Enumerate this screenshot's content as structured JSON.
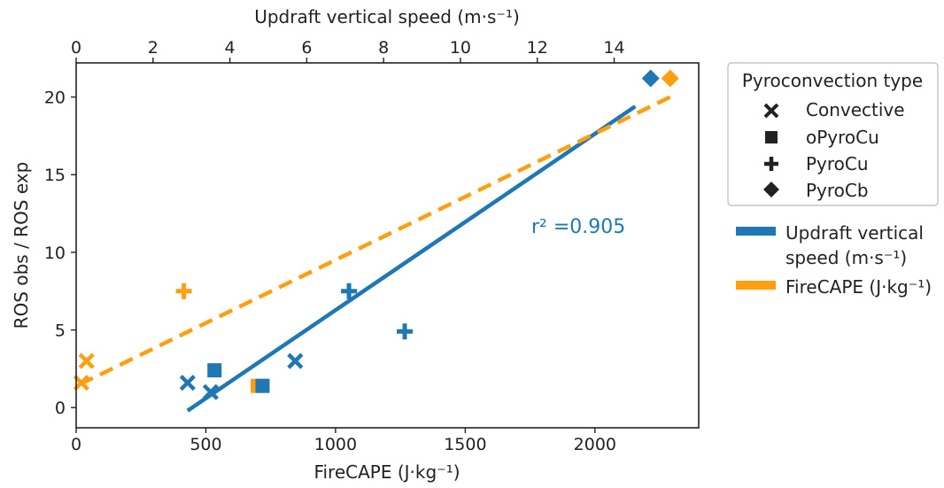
{
  "chart_data": {
    "type": "scatter",
    "xlabel": "FireCAPE (J·kg⁻¹)",
    "xlabel_top": "Updraft vertical speed (m·s⁻¹)",
    "ylabel": "ROS obs / ROS exp",
    "xlim": [
      0,
      2400
    ],
    "xlim_top": [
      0,
      16.2
    ],
    "ylim": [
      -1.3,
      22.2
    ],
    "x_ticks": [
      0,
      500,
      1000,
      1500,
      2000
    ],
    "x_top_ticks": [
      0,
      2,
      4,
      6,
      8,
      10,
      12,
      14
    ],
    "y_ticks": [
      0,
      5,
      10,
      15,
      20
    ],
    "annotation": "r² =0.905",
    "legend_title": "Pyroconvection type",
    "marker_legend": [
      {
        "label": "Convective",
        "marker": "x"
      },
      {
        "label": "oPyroCu",
        "marker": "square"
      },
      {
        "label": "PyroCu",
        "marker": "plus"
      },
      {
        "label": "PyroCb",
        "marker": "diamond"
      }
    ],
    "colors": {
      "updraft": "#1f77b4",
      "firecape": "#ff9f0f"
    },
    "series": [
      {
        "name": "Updraft vertical speed (m·s⁻¹)",
        "axis": "top",
        "color": "#1f77b4",
        "fit_line": {
          "style": "solid",
          "from": [
            2.9,
            -0.2
          ],
          "to": [
            14.55,
            19.4
          ]
        },
        "points": [
          {
            "x": 2.9,
            "y": 1.6,
            "marker": "x"
          },
          {
            "x": 3.5,
            "y": 1.0,
            "marker": "x"
          },
          {
            "x": 5.7,
            "y": 3.0,
            "marker": "x"
          },
          {
            "x": 3.6,
            "y": 2.4,
            "marker": "square"
          },
          {
            "x": 4.85,
            "y": 1.4,
            "marker": "square"
          },
          {
            "x": 7.1,
            "y": 7.5,
            "marker": "plus"
          },
          {
            "x": 8.55,
            "y": 4.9,
            "marker": "plus"
          },
          {
            "x": 14.95,
            "y": 21.2,
            "marker": "diamond"
          }
        ]
      },
      {
        "name": "FireCAPE (J·kg⁻¹)",
        "axis": "bottom",
        "color": "#ff9f0f",
        "fit_line": {
          "style": "dashed",
          "from": [
            15,
            1.5
          ],
          "to": [
            2290,
            20.0
          ]
        },
        "points": [
          {
            "x": 20,
            "y": 1.6,
            "marker": "x"
          },
          {
            "x": 40,
            "y": 3.0,
            "marker": "x"
          },
          {
            "x": 415,
            "y": 7.5,
            "marker": "plus"
          },
          {
            "x": 700,
            "y": 1.4,
            "marker": "square"
          },
          {
            "x": 2290,
            "y": 21.2,
            "marker": "diamond"
          }
        ]
      }
    ]
  },
  "legend": {
    "title": "Pyroconvection type",
    "items": [
      "Convective",
      "oPyroCu",
      "PyroCu",
      "PyroCb"
    ],
    "line_items": [
      {
        "line1": "Updraft vertical",
        "line2": "speed (m·s⁻¹)"
      },
      {
        "line1": "FireCAPE (J·kg⁻¹)"
      }
    ]
  }
}
